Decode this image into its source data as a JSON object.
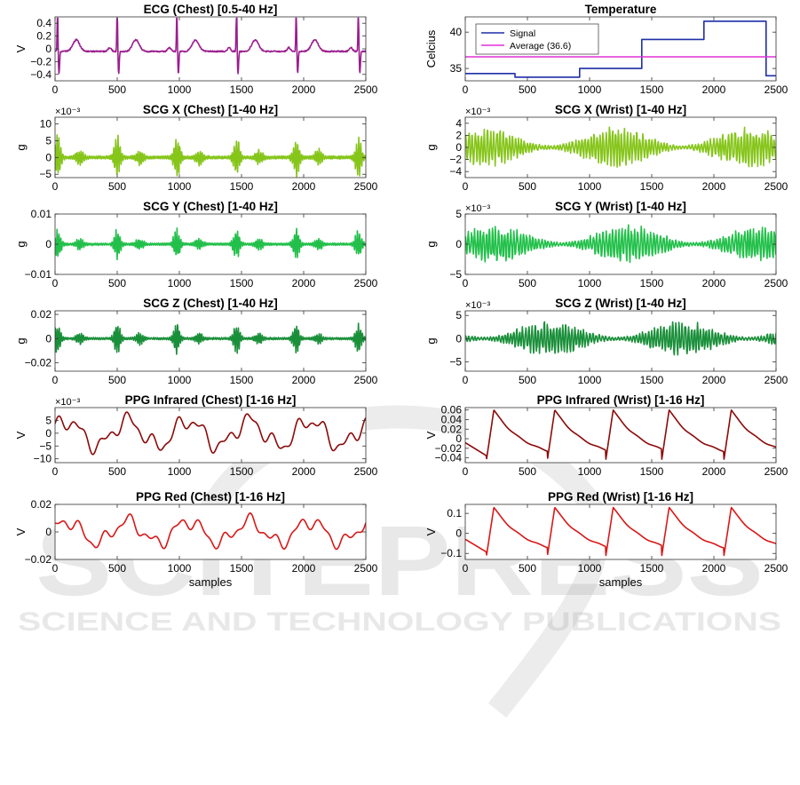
{
  "watermark": {
    "big": "SCITEPRESS",
    "small": "SCIENCE AND TECHNOLOGY PUBLICATIONS"
  },
  "chart_data": [
    {
      "id": "ecg-chest",
      "type": "line",
      "title": "ECG (Chest) [0.5-40 Hz]",
      "xlabel": "",
      "ylabel": "V",
      "xlim": [
        0,
        2500
      ],
      "ylim": [
        -0.5,
        0.5
      ],
      "xticks": [
        "0",
        "500",
        "1000",
        "1500",
        "2000",
        "2500"
      ],
      "yticks": [
        {
          "v": 0.4,
          "t": "0.4"
        },
        {
          "v": 0.2,
          "t": "0.2"
        },
        {
          "v": 0,
          "t": "0"
        },
        {
          "v": -0.2,
          "t": "−0.2"
        },
        {
          "v": -0.4,
          "t": "−0.4"
        }
      ],
      "exponent": "",
      "color": "#9b1e8e",
      "series": [
        {
          "kind": "ecg",
          "beats": [
            20,
            500,
            980,
            1460,
            1940,
            2440
          ]
        }
      ]
    },
    {
      "id": "temperature",
      "type": "line",
      "title": "Temperature",
      "xlabel": "",
      "ylabel": "Celcius",
      "xlim": [
        0,
        2500
      ],
      "ylim": [
        33.3,
        42.1
      ],
      "xticks": [
        "0",
        "500",
        "1000",
        "1500",
        "2000",
        "2500"
      ],
      "yticks": [
        {
          "v": 40,
          "t": "40"
        },
        {
          "v": 35,
          "t": "35"
        }
      ],
      "exponent": "",
      "legend_position": "top-left",
      "series": [
        {
          "name": "Signal",
          "color": "#1f2fa8",
          "kind": "step",
          "steps": [
            [
              0,
              34.3
            ],
            [
              400,
              33.8
            ],
            [
              920,
              35.0
            ],
            [
              1420,
              39.0
            ],
            [
              1920,
              41.5
            ],
            [
              2420,
              34.0
            ],
            [
              2500,
              34.0
            ]
          ]
        },
        {
          "name": "Average (36.6)",
          "color": "#e030d8",
          "kind": "const",
          "value": 36.6
        }
      ]
    },
    {
      "id": "scgx-chest",
      "type": "line",
      "title": "SCG X (Chest) [1-40 Hz]",
      "xlabel": "",
      "ylabel": "g",
      "xlim": [
        0,
        2500
      ],
      "ylim": [
        -6,
        12
      ],
      "xticks": [
        "0",
        "500",
        "1000",
        "1500",
        "2000",
        "2500"
      ],
      "yticks": [
        {
          "v": 10,
          "t": "10"
        },
        {
          "v": 5,
          "t": "5"
        },
        {
          "v": 0,
          "t": "0"
        },
        {
          "v": -5,
          "t": "−5"
        }
      ],
      "exponent": "×10⁻³",
      "color": "#86c51a",
      "series": [
        {
          "kind": "burst",
          "amp": 6,
          "beats": [
            20,
            500,
            980,
            1460,
            1940,
            2440
          ],
          "seed": 3
        }
      ]
    },
    {
      "id": "scgx-wrist",
      "type": "line",
      "title": "SCG X (Wrist) [1-40 Hz]",
      "xlabel": "",
      "ylabel": "g",
      "xlim": [
        0,
        2500
      ],
      "ylim": [
        -5,
        5
      ],
      "xticks": [
        "0",
        "500",
        "1000",
        "1500",
        "2000",
        "2500"
      ],
      "yticks": [
        {
          "v": 4,
          "t": "4"
        },
        {
          "v": 2,
          "t": "2"
        },
        {
          "v": 0,
          "t": "0"
        },
        {
          "v": -2,
          "t": "−2"
        },
        {
          "v": -4,
          "t": "−4"
        }
      ],
      "exponent": "×10⁻³",
      "color": "#86c51a",
      "series": [
        {
          "kind": "noise",
          "amp": 3.2,
          "seed": 7
        }
      ]
    },
    {
      "id": "scgy-chest",
      "type": "line",
      "title": "SCG Y (Chest) [1-40 Hz]",
      "xlabel": "",
      "ylabel": "g",
      "xlim": [
        0,
        2500
      ],
      "ylim": [
        -0.01,
        0.01
      ],
      "xticks": [
        "0",
        "500",
        "1000",
        "1500",
        "2000",
        "2500"
      ],
      "yticks": [
        {
          "v": 0.01,
          "t": "0.01"
        },
        {
          "v": 0,
          "t": "0"
        },
        {
          "v": -0.01,
          "t": "−0.01"
        }
      ],
      "exponent": "",
      "color": "#22c04a",
      "series": [
        {
          "kind": "burst",
          "amp": 0.005,
          "beats": [
            20,
            500,
            980,
            1460,
            1940,
            2440
          ],
          "seed": 11
        }
      ]
    },
    {
      "id": "scgy-wrist",
      "type": "line",
      "title": "SCG Y (Wrist) [1-40 Hz]",
      "xlabel": "",
      "ylabel": "g",
      "xlim": [
        0,
        2500
      ],
      "ylim": [
        -5,
        5
      ],
      "xticks": [
        "0",
        "500",
        "1000",
        "1500",
        "2000",
        "2500"
      ],
      "yticks": [
        {
          "v": 5,
          "t": "5"
        },
        {
          "v": 0,
          "t": "0"
        },
        {
          "v": -5,
          "t": "−5"
        }
      ],
      "exponent": "×10⁻³",
      "color": "#22c04a",
      "series": [
        {
          "kind": "noise",
          "amp": 3.0,
          "seed": 19
        }
      ]
    },
    {
      "id": "scgz-chest",
      "type": "line",
      "title": "SCG Z (Chest) [1-40 Hz]",
      "xlabel": "",
      "ylabel": "g",
      "xlim": [
        0,
        2500
      ],
      "ylim": [
        -0.027,
        0.023
      ],
      "xticks": [
        "0",
        "500",
        "1000",
        "1500",
        "2000",
        "2500"
      ],
      "yticks": [
        {
          "v": 0.02,
          "t": "0.02"
        },
        {
          "v": 0,
          "t": "0"
        },
        {
          "v": -0.02,
          "t": "−0.02"
        }
      ],
      "exponent": "",
      "color": "#1a8f3a",
      "series": [
        {
          "kind": "burst",
          "amp": 0.012,
          "beats": [
            20,
            500,
            980,
            1460,
            1940,
            2440
          ],
          "seed": 23
        }
      ]
    },
    {
      "id": "scgz-wrist",
      "type": "line",
      "title": "SCG Z (Wrist) [1-40 Hz]",
      "xlabel": "",
      "ylabel": "g",
      "xlim": [
        0,
        2500
      ],
      "ylim": [
        -7,
        6
      ],
      "xticks": [
        "0",
        "500",
        "1000",
        "1500",
        "2000",
        "2500"
      ],
      "yticks": [
        {
          "v": 5,
          "t": "5"
        },
        {
          "v": 0,
          "t": "0"
        },
        {
          "v": -5,
          "t": "−5"
        }
      ],
      "exponent": "×10⁻³",
      "color": "#1a8f3a",
      "series": [
        {
          "kind": "noise",
          "amp": 3.6,
          "seed": 29
        }
      ]
    },
    {
      "id": "ppgir-chest",
      "type": "line",
      "title": "PPG Infrared (Chest) [1-16 Hz]",
      "xlabel": "",
      "ylabel": "V",
      "xlim": [
        0,
        2500
      ],
      "ylim": [
        -11.5,
        10
      ],
      "xticks": [
        "0",
        "500",
        "1000",
        "1500",
        "2000",
        "2500"
      ],
      "yticks": [
        {
          "v": 5,
          "t": "5"
        },
        {
          "v": 0,
          "t": "0"
        },
        {
          "v": -5,
          "t": "−5"
        },
        {
          "v": -10,
          "t": "−10"
        }
      ],
      "exponent": "×10⁻³",
      "color": "#8b0a0a",
      "series": [
        {
          "kind": "smooth",
          "amp": 7,
          "seed": 31
        }
      ]
    },
    {
      "id": "ppgir-wrist",
      "type": "line",
      "title": "PPG Infrared (Wrist) [1-16 Hz]",
      "xlabel": "",
      "ylabel": "V",
      "xlim": [
        0,
        2500
      ],
      "ylim": [
        -0.05,
        0.065
      ],
      "xticks": [
        "0",
        "500",
        "1000",
        "1500",
        "2000",
        "2500"
      ],
      "yticks": [
        {
          "v": 0.06,
          "t": "0.06"
        },
        {
          "v": 0.04,
          "t": "0.04"
        },
        {
          "v": 0.02,
          "t": "0.02"
        },
        {
          "v": 0,
          "t": "0"
        },
        {
          "v": -0.02,
          "t": "−0.02"
        },
        {
          "v": -0.04,
          "t": "−0.04"
        }
      ],
      "exponent": "",
      "color": "#8b0a0a",
      "series": [
        {
          "kind": "ppg",
          "top": 0.06,
          "bottom": -0.045,
          "beats": [
            230,
            720,
            1190,
            1640,
            2140
          ]
        }
      ]
    },
    {
      "id": "ppgred-chest",
      "type": "line",
      "title": "PPG Red (Chest) [1-16 Hz]",
      "xlabel": "samples",
      "ylabel": "V",
      "xlim": [
        0,
        2500
      ],
      "ylim": [
        -0.02,
        0.02
      ],
      "xticks": [
        "0",
        "500",
        "1000",
        "1500",
        "2000",
        "2500"
      ],
      "yticks": [
        {
          "v": 0.02,
          "t": "0.02"
        },
        {
          "v": 0,
          "t": "0"
        },
        {
          "v": -0.02,
          "t": "−0.02"
        }
      ],
      "exponent": "",
      "color": "#d81818",
      "series": [
        {
          "kind": "smooth",
          "amp": 0.011,
          "seed": 41
        }
      ]
    },
    {
      "id": "ppgred-wrist",
      "type": "line",
      "title": "PPG Red (Wrist) [1-16 Hz]",
      "xlabel": "samples",
      "ylabel": "V",
      "xlim": [
        0,
        2500
      ],
      "ylim": [
        -0.13,
        0.145
      ],
      "xticks": [
        "0",
        "500",
        "1000",
        "1500",
        "2000",
        "2500"
      ],
      "yticks": [
        {
          "v": 0.1,
          "t": "0.1"
        },
        {
          "v": 0,
          "t": "0"
        },
        {
          "v": -0.1,
          "t": "−0.1"
        }
      ],
      "exponent": "",
      "color": "#d81818",
      "series": [
        {
          "kind": "ppg",
          "top": 0.13,
          "bottom": -0.115,
          "beats": [
            230,
            720,
            1190,
            1640,
            2140
          ]
        }
      ]
    }
  ]
}
